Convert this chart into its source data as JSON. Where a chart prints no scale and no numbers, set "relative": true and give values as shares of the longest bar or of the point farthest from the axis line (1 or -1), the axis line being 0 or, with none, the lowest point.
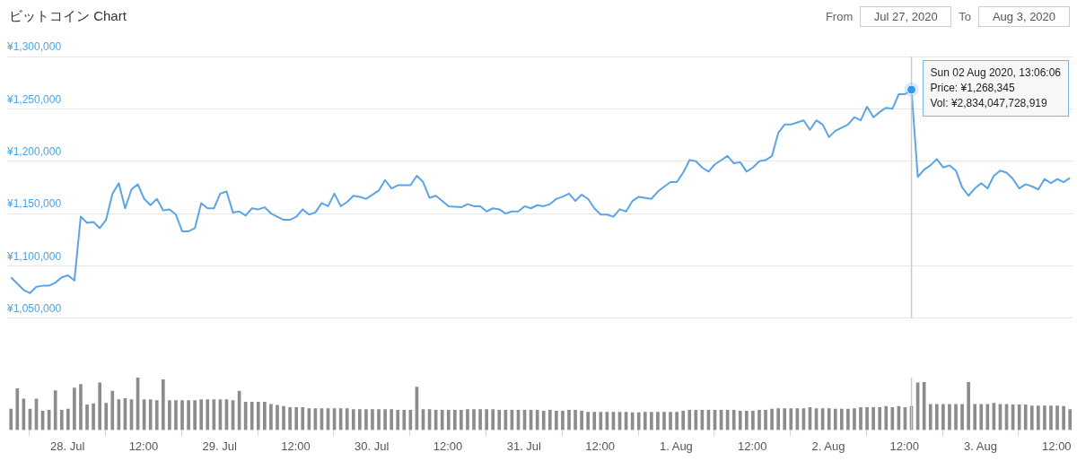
{
  "chart_data": [
    {
      "type": "line",
      "title": "ビットコイン Chart",
      "annotations": [
        "From",
        "Jul 27, 2020",
        "To",
        "Aug 3, 2020",
        {
          "text": "Sun 02 Aug 2020, 13:06:06\nPrice: ¥1,268,345\nVol: ¥2,834,047,728,919",
          "x": "2020-08-02T13:06",
          "y": 1268345
        }
      ],
      "color": "#5ba4e6",
      "x": [
        "2020-07-27T15:06",
        "2020-07-27T17:06",
        "2020-07-27T18:06",
        "2020-07-27T19:06",
        "2020-07-27T20:06",
        "2020-07-27T21:06",
        "2020-07-27T22:06",
        "2020-07-27T23:06",
        "2020-07-28T00:06",
        "2020-07-28T01:06",
        "2020-07-28T02:06",
        "2020-07-28T03:06",
        "2020-07-28T04:06",
        "2020-07-28T05:06",
        "2020-07-28T06:06",
        "2020-07-28T07:06",
        "2020-07-28T08:06",
        "2020-07-28T09:06",
        "2020-07-28T10:06",
        "2020-07-28T11:06",
        "2020-07-28T12:06",
        "2020-07-28T13:06",
        "2020-07-28T14:06",
        "2020-07-28T15:06",
        "2020-07-28T16:06",
        "2020-07-28T17:06",
        "2020-07-28T18:06",
        "2020-07-28T19:06",
        "2020-07-28T20:06",
        "2020-07-28T21:06",
        "2020-07-28T22:06",
        "2020-07-28T23:06",
        "2020-07-29T00:06",
        "2020-07-29T01:06",
        "2020-07-29T02:06",
        "2020-07-29T03:06",
        "2020-07-29T04:06",
        "2020-07-29T05:06",
        "2020-07-29T06:06",
        "2020-07-29T07:06",
        "2020-07-29T08:06",
        "2020-07-29T10:06",
        "2020-07-29T11:06",
        "2020-07-29T12:06",
        "2020-07-29T13:06",
        "2020-07-29T14:06",
        "2020-07-29T15:06",
        "2020-07-29T16:06",
        "2020-07-29T17:06",
        "2020-07-29T18:06",
        "2020-07-29T19:06",
        "2020-07-29T20:06",
        "2020-07-29T21:06",
        "2020-07-29T22:06",
        "2020-07-29T23:06",
        "2020-07-30T01:06",
        "2020-07-30T02:06",
        "2020-07-30T03:06",
        "2020-07-30T04:06",
        "2020-07-30T06:06",
        "2020-07-30T07:06",
        "2020-07-30T08:06",
        "2020-07-30T09:06",
        "2020-07-30T10:06",
        "2020-07-30T11:06",
        "2020-07-30T12:06",
        "2020-07-30T14:06",
        "2020-07-30T15:06",
        "2020-07-30T16:06",
        "2020-07-30T17:06",
        "2020-07-30T18:06",
        "2020-07-30T19:06",
        "2020-07-30T20:06",
        "2020-07-30T21:06",
        "2020-07-30T22:06",
        "2020-07-30T23:06",
        "2020-07-31T00:06",
        "2020-07-31T01:06",
        "2020-07-31T02:06",
        "2020-07-31T03:06",
        "2020-07-31T04:06",
        "2020-07-31T05:06",
        "2020-07-31T06:06",
        "2020-07-31T07:06",
        "2020-07-31T08:06",
        "2020-07-31T09:06",
        "2020-07-31T10:06",
        "2020-07-31T11:06",
        "2020-07-31T12:06",
        "2020-07-31T13:06",
        "2020-07-31T14:06",
        "2020-07-31T15:06",
        "2020-07-31T16:06",
        "2020-07-31T17:06",
        "2020-07-31T18:06",
        "2020-07-31T20:06",
        "2020-07-31T21:06",
        "2020-07-31T23:06",
        "2020-08-01T00:06",
        "2020-08-01T01:06",
        "2020-08-01T02:06",
        "2020-08-01T03:06",
        "2020-08-01T04:06",
        "2020-08-01T05:06",
        "2020-08-01T06:06",
        "2020-08-01T08:06",
        "2020-08-01T09:06",
        "2020-08-01T10:06",
        "2020-08-01T11:06",
        "2020-08-01T12:06",
        "2020-08-01T13:06",
        "2020-08-01T14:06",
        "2020-08-01T15:06",
        "2020-08-01T16:06",
        "2020-08-01T17:06",
        "2020-08-01T18:06",
        "2020-08-01T19:06",
        "2020-08-01T20:06",
        "2020-08-01T21:06",
        "2020-08-01T22:06",
        "2020-08-01T23:06",
        "2020-08-02T00:06",
        "2020-08-02T01:06",
        "2020-08-02T02:06",
        "2020-08-02T03:06",
        "2020-08-02T04:06",
        "2020-08-02T05:06",
        "2020-08-02T06:06",
        "2020-08-02T07:06",
        "2020-08-02T08:06",
        "2020-08-02T09:06",
        "2020-08-02T10:06",
        "2020-08-02T11:06",
        "2020-08-02T12:06",
        "2020-08-02T13:06",
        "2020-08-02T14:06",
        "2020-08-02T15:06",
        "2020-08-02T16:06",
        "2020-08-02T17:06",
        "2020-08-02T18:06",
        "2020-08-02T19:06",
        "2020-08-02T20:06",
        "2020-08-02T21:06",
        "2020-08-02T22:06",
        "2020-08-02T23:06",
        "2020-08-03T00:06",
        "2020-08-03T01:06",
        "2020-08-03T02:06",
        "2020-08-03T03:06",
        "2020-08-03T04:06",
        "2020-08-03T05:06",
        "2020-08-03T06:06",
        "2020-08-03T07:06",
        "2020-08-03T08:06",
        "2020-08-03T09:06",
        "2020-08-03T10:06",
        "2020-08-03T11:06",
        "2020-08-03T12:06",
        "2020-08-03T13:06",
        "2020-08-03T14:06"
      ],
      "values": [
        1089000,
        1077000,
        1074000,
        1080000,
        1081000,
        1081000,
        1084000,
        1089000,
        1091000,
        1086000,
        1147000,
        1141000,
        1142000,
        1136000,
        1144000,
        1169000,
        1179000,
        1155000,
        1173000,
        1178000,
        1164000,
        1158000,
        1164000,
        1153000,
        1154000,
        1149000,
        1133000,
        1133000,
        1136000,
        1160000,
        1155000,
        1155000,
        1169000,
        1171000,
        1151000,
        1152000,
        1148000,
        1155000,
        1154000,
        1156000,
        1150000,
        1144000,
        1144000,
        1147000,
        1154000,
        1149000,
        1151000,
        1160000,
        1157000,
        1169000,
        1157000,
        1161000,
        1167000,
        1166000,
        1164000,
        1172000,
        1182000,
        1174000,
        1177000,
        1177000,
        1186000,
        1180000,
        1165000,
        1167000,
        1162000,
        1157000,
        1156000,
        1159000,
        1157000,
        1157000,
        1152000,
        1155000,
        1154000,
        1150000,
        1152000,
        1152000,
        1157000,
        1155000,
        1158000,
        1157000,
        1159000,
        1164000,
        1166000,
        1169000,
        1162000,
        1168000,
        1164000,
        1155000,
        1149000,
        1149000,
        1147000,
        1154000,
        1152000,
        1162000,
        1166000,
        1164000,
        1171000,
        1180000,
        1180000,
        1189000,
        1201000,
        1200000,
        1194000,
        1190000,
        1197000,
        1205000,
        1198000,
        1199000,
        1190000,
        1194000,
        1200000,
        1201000,
        1205000,
        1227000,
        1235000,
        1235000,
        1237000,
        1239000,
        1230000,
        1239000,
        1235000,
        1223000,
        1229000,
        1232000,
        1235000,
        1242000,
        1239000,
        1252000,
        1242000,
        1247000,
        1251000,
        1250000,
        1264000,
        1264000,
        1268345,
        1185000,
        1192000,
        1196000,
        1202000,
        1194000,
        1196000,
        1191000,
        1175000,
        1167000,
        1174000,
        1179000,
        1174000,
        1186000,
        1191000,
        1189000,
        1183000,
        1174000,
        1178000,
        1176000,
        1173000,
        1183000,
        1179000,
        1183000,
        1180000,
        1184000
      ],
      "xlim": [
        "2020-07-27T14:30",
        "2020-08-03T14:30"
      ],
      "ylim": [
        1050000,
        1300000
      ],
      "yticks": [
        {
          "value": 1050000,
          "label": "¥1,050,000"
        },
        {
          "value": 1100000,
          "label": "¥1,100,000"
        },
        {
          "value": 1150000,
          "label": "¥1,150,000"
        },
        {
          "value": 1200000,
          "label": "¥1,200,000"
        },
        {
          "value": 1250000,
          "label": "¥1,250,000"
        },
        {
          "value": 1300000,
          "label": "¥1,300,000"
        }
      ],
      "grid": "y",
      "tick_labels": "y",
      "ref_lines": [
        {
          "axis": "x",
          "value": "2020-08-02T13:06",
          "color": "#cccccc"
        }
      ]
    },
    {
      "type": "bar",
      "relative": true,
      "color": "#8c8c8c",
      "x": [
        "2020-07-27T15:06",
        "2020-07-27T16:06",
        "2020-07-27T17:06",
        "2020-07-27T18:06",
        "2020-07-27T19:06",
        "2020-07-27T20:06",
        "2020-07-27T21:06",
        "2020-07-27T22:06",
        "2020-07-27T23:06",
        "2020-07-28T00:06",
        "2020-07-28T01:06",
        "2020-07-28T02:06",
        "2020-07-28T03:06",
        "2020-07-28T04:06",
        "2020-07-28T05:06",
        "2020-07-28T06:06",
        "2020-07-28T07:06",
        "2020-07-28T08:06",
        "2020-07-28T09:06",
        "2020-07-28T10:06",
        "2020-07-28T11:06",
        "2020-07-28T12:06",
        "2020-07-28T13:06",
        "2020-07-28T14:06",
        "2020-07-28T15:06",
        "2020-07-28T16:06",
        "2020-07-28T17:06",
        "2020-07-28T18:06",
        "2020-07-28T19:06",
        "2020-07-28T20:06",
        "2020-07-28T21:06",
        "2020-07-28T22:06",
        "2020-07-28T23:06",
        "2020-07-29T00:06",
        "2020-07-29T01:06",
        "2020-07-29T02:06",
        "2020-07-29T03:06",
        "2020-07-29T04:06",
        "2020-07-29T05:06",
        "2020-07-29T06:06",
        "2020-07-29T07:06",
        "2020-07-29T08:06",
        "2020-07-29T09:06",
        "2020-07-29T10:06",
        "2020-07-29T11:06",
        "2020-07-29T12:06",
        "2020-07-29T13:06",
        "2020-07-29T14:06",
        "2020-07-29T15:06",
        "2020-07-29T16:06",
        "2020-07-29T17:06",
        "2020-07-29T18:06",
        "2020-07-29T19:06",
        "2020-07-29T20:06",
        "2020-07-29T21:06",
        "2020-07-29T22:06",
        "2020-07-29T23:06",
        "2020-07-30T00:06",
        "2020-07-30T01:06",
        "2020-07-30T02:06",
        "2020-07-30T03:06",
        "2020-07-30T04:06",
        "2020-07-30T05:06",
        "2020-07-30T06:06",
        "2020-07-30T07:06",
        "2020-07-30T08:06",
        "2020-07-30T09:06",
        "2020-07-30T10:06",
        "2020-07-30T11:06",
        "2020-07-30T12:06",
        "2020-07-30T13:06",
        "2020-07-30T14:06",
        "2020-07-30T15:06",
        "2020-07-30T16:06",
        "2020-07-30T17:06",
        "2020-07-30T18:06",
        "2020-07-30T19:06",
        "2020-07-30T20:06",
        "2020-07-30T21:06",
        "2020-07-30T22:06",
        "2020-07-30T23:06",
        "2020-07-31T00:06",
        "2020-07-31T01:06",
        "2020-07-31T02:06",
        "2020-07-31T03:06",
        "2020-07-31T04:06",
        "2020-07-31T05:06",
        "2020-07-31T06:06",
        "2020-07-31T07:06",
        "2020-07-31T08:06",
        "2020-07-31T09:06",
        "2020-07-31T10:06",
        "2020-07-31T11:06",
        "2020-07-31T12:06",
        "2020-07-31T13:06",
        "2020-07-31T14:06",
        "2020-07-31T15:06",
        "2020-07-31T16:06",
        "2020-07-31T17:06",
        "2020-07-31T18:06",
        "2020-07-31T19:06",
        "2020-07-31T20:06",
        "2020-07-31T21:06",
        "2020-07-31T22:06",
        "2020-07-31T23:06",
        "2020-08-01T00:06",
        "2020-08-01T01:06",
        "2020-08-01T02:06",
        "2020-08-01T03:06",
        "2020-08-01T04:06",
        "2020-08-01T05:06",
        "2020-08-01T06:06",
        "2020-08-01T07:06",
        "2020-08-01T08:06",
        "2020-08-01T09:06",
        "2020-08-01T10:06",
        "2020-08-01T11:06",
        "2020-08-01T12:06",
        "2020-08-01T13:06",
        "2020-08-01T14:06",
        "2020-08-01T15:06",
        "2020-08-01T16:06",
        "2020-08-01T17:06",
        "2020-08-01T18:06",
        "2020-08-01T19:06",
        "2020-08-01T20:06",
        "2020-08-01T21:06",
        "2020-08-01T22:06",
        "2020-08-01T23:06",
        "2020-08-02T00:06",
        "2020-08-02T01:06",
        "2020-08-02T02:06",
        "2020-08-02T03:06",
        "2020-08-02T04:06",
        "2020-08-02T05:06",
        "2020-08-02T06:06",
        "2020-08-02T07:06",
        "2020-08-02T08:06",
        "2020-08-02T09:06",
        "2020-08-02T10:06",
        "2020-08-02T11:06",
        "2020-08-02T12:06",
        "2020-08-02T13:06",
        "2020-08-02T14:06",
        "2020-08-02T15:06",
        "2020-08-02T16:06",
        "2020-08-02T17:06",
        "2020-08-02T18:06",
        "2020-08-02T19:06",
        "2020-08-02T20:06",
        "2020-08-02T21:06",
        "2020-08-02T22:06",
        "2020-08-02T23:06",
        "2020-08-03T00:06",
        "2020-08-03T01:06",
        "2020-08-03T02:06",
        "2020-08-03T03:06",
        "2020-08-03T04:06",
        "2020-08-03T05:06",
        "2020-08-03T06:06",
        "2020-08-03T07:06",
        "2020-08-03T08:06",
        "2020-08-03T09:06",
        "2020-08-03T10:06",
        "2020-08-03T11:06",
        "2020-08-03T12:06",
        "2020-08-03T13:06",
        "2020-08-03T14:06"
      ],
      "values": [
        0.4,
        0.79,
        0.59,
        0.4,
        0.59,
        0.36,
        0.38,
        0.75,
        0.38,
        0.4,
        0.8,
        0.87,
        0.48,
        0.5,
        0.9,
        0.51,
        0.74,
        0.58,
        0.6,
        0.58,
        1,
        0.58,
        0.58,
        0.56,
        0.96,
        0.56,
        0.56,
        0.56,
        0.56,
        0.56,
        0.58,
        0.58,
        0.58,
        0.58,
        0.58,
        0.56,
        0.74,
        0.53,
        0.53,
        0.53,
        0.53,
        0.49,
        0.47,
        0.45,
        0.43,
        0.43,
        0.43,
        0.41,
        0.41,
        0.41,
        0.41,
        0.41,
        0.41,
        0.41,
        0.39,
        0.39,
        0.39,
        0.39,
        0.39,
        0.39,
        0.39,
        0.38,
        0.38,
        0.38,
        0.82,
        0.39,
        0.39,
        0.38,
        0.38,
        0.38,
        0.38,
        0.38,
        0.39,
        0.39,
        0.39,
        0.39,
        0.39,
        0.38,
        0.38,
        0.38,
        0.38,
        0.38,
        0.38,
        0.38,
        0.36,
        0.38,
        0.36,
        0.36,
        0.38,
        0.38,
        0.36,
        0.34,
        0.34,
        0.34,
        0.34,
        0.34,
        0.34,
        0.34,
        0.33,
        0.33,
        0.34,
        0.34,
        0.34,
        0.34,
        0.34,
        0.34,
        0.36,
        0.38,
        0.38,
        0.38,
        0.38,
        0.38,
        0.38,
        0.38,
        0.38,
        0.36,
        0.36,
        0.36,
        0.38,
        0.38,
        0.4,
        0.41,
        0.41,
        0.41,
        0.41,
        0.41,
        0.43,
        0.41,
        0.41,
        0.41,
        0.4,
        0.4,
        0.4,
        0.41,
        0.43,
        0.43,
        0.43,
        0.43,
        0.45,
        0.43,
        0.45,
        0.43,
        0.45,
        0.9,
        0.91,
        0.49,
        0.49,
        0.49,
        0.49,
        0.49,
        0.49,
        0.91,
        0.49,
        0.49,
        0.49,
        0.51,
        0.49,
        0.49,
        0.48,
        0.48,
        0.48,
        0.46,
        0.46,
        0.46,
        0.46,
        0.46,
        0.45,
        0.39
      ],
      "xlim": [
        "2020-07-27T14:30",
        "2020-08-03T14:30"
      ],
      "xticks": [
        {
          "value": "2020-07-28T00:00",
          "label": "28. Jul"
        },
        {
          "value": "2020-07-28T12:00",
          "label": "12:00"
        },
        {
          "value": "2020-07-29T00:00",
          "label": "29. Jul"
        },
        {
          "value": "2020-07-29T12:00",
          "label": "12:00"
        },
        {
          "value": "2020-07-30T00:00",
          "label": "30. Jul"
        },
        {
          "value": "2020-07-30T12:00",
          "label": "12:00"
        },
        {
          "value": "2020-07-31T00:00",
          "label": "31. Jul"
        },
        {
          "value": "2020-07-31T12:00",
          "label": "12:00"
        },
        {
          "value": "2020-08-01T00:00",
          "label": "1. Aug"
        },
        {
          "value": "2020-08-01T12:00",
          "label": "12:00"
        },
        {
          "value": "2020-08-02T00:00",
          "label": "2. Aug"
        },
        {
          "value": "2020-08-02T12:00",
          "label": "12:00"
        },
        {
          "value": "2020-08-03T00:00",
          "label": "3. Aug"
        },
        {
          "value": "2020-08-03T12:00",
          "label": "12:00"
        }
      ],
      "tick_labels": "x",
      "ref_lines": [
        {
          "axis": "x",
          "value": "2020-08-02T13:06",
          "color": "#cccccc"
        }
      ]
    }
  ]
}
